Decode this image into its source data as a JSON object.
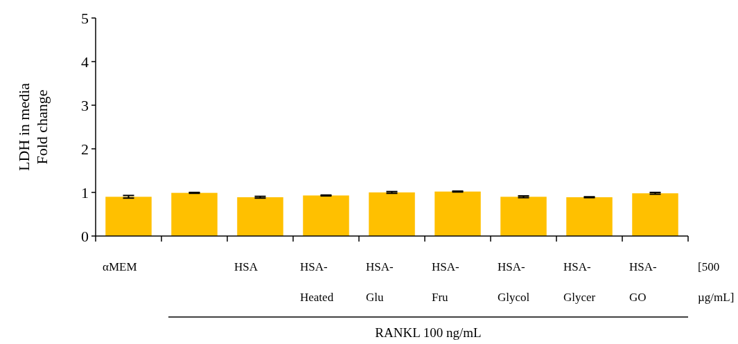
{
  "chart_data": {
    "type": "bar",
    "ylabel": "LDH in media\nFold change",
    "categories": [
      "αMEM",
      null,
      "HSA",
      "HSA-Heated",
      "HSA-Glu",
      "HSA-Fru",
      "HSA-Glycol",
      "HSA-Glycer",
      "HSA-GO"
    ],
    "values": [
      0.9,
      0.99,
      0.89,
      0.93,
      1.0,
      1.02,
      0.9,
      0.89,
      0.98
    ],
    "errors": [
      0.03,
      0.01,
      0.02,
      0.01,
      0.02,
      0.01,
      0.02,
      0.01,
      0.02
    ],
    "color": "#ffc000",
    "ylim": [
      0,
      5
    ],
    "yticks": [
      0,
      1,
      2,
      3,
      4,
      5
    ],
    "grid": false,
    "annotations": [
      "[500 µg/mL]",
      "RANKL 100 ng/mL"
    ]
  }
}
